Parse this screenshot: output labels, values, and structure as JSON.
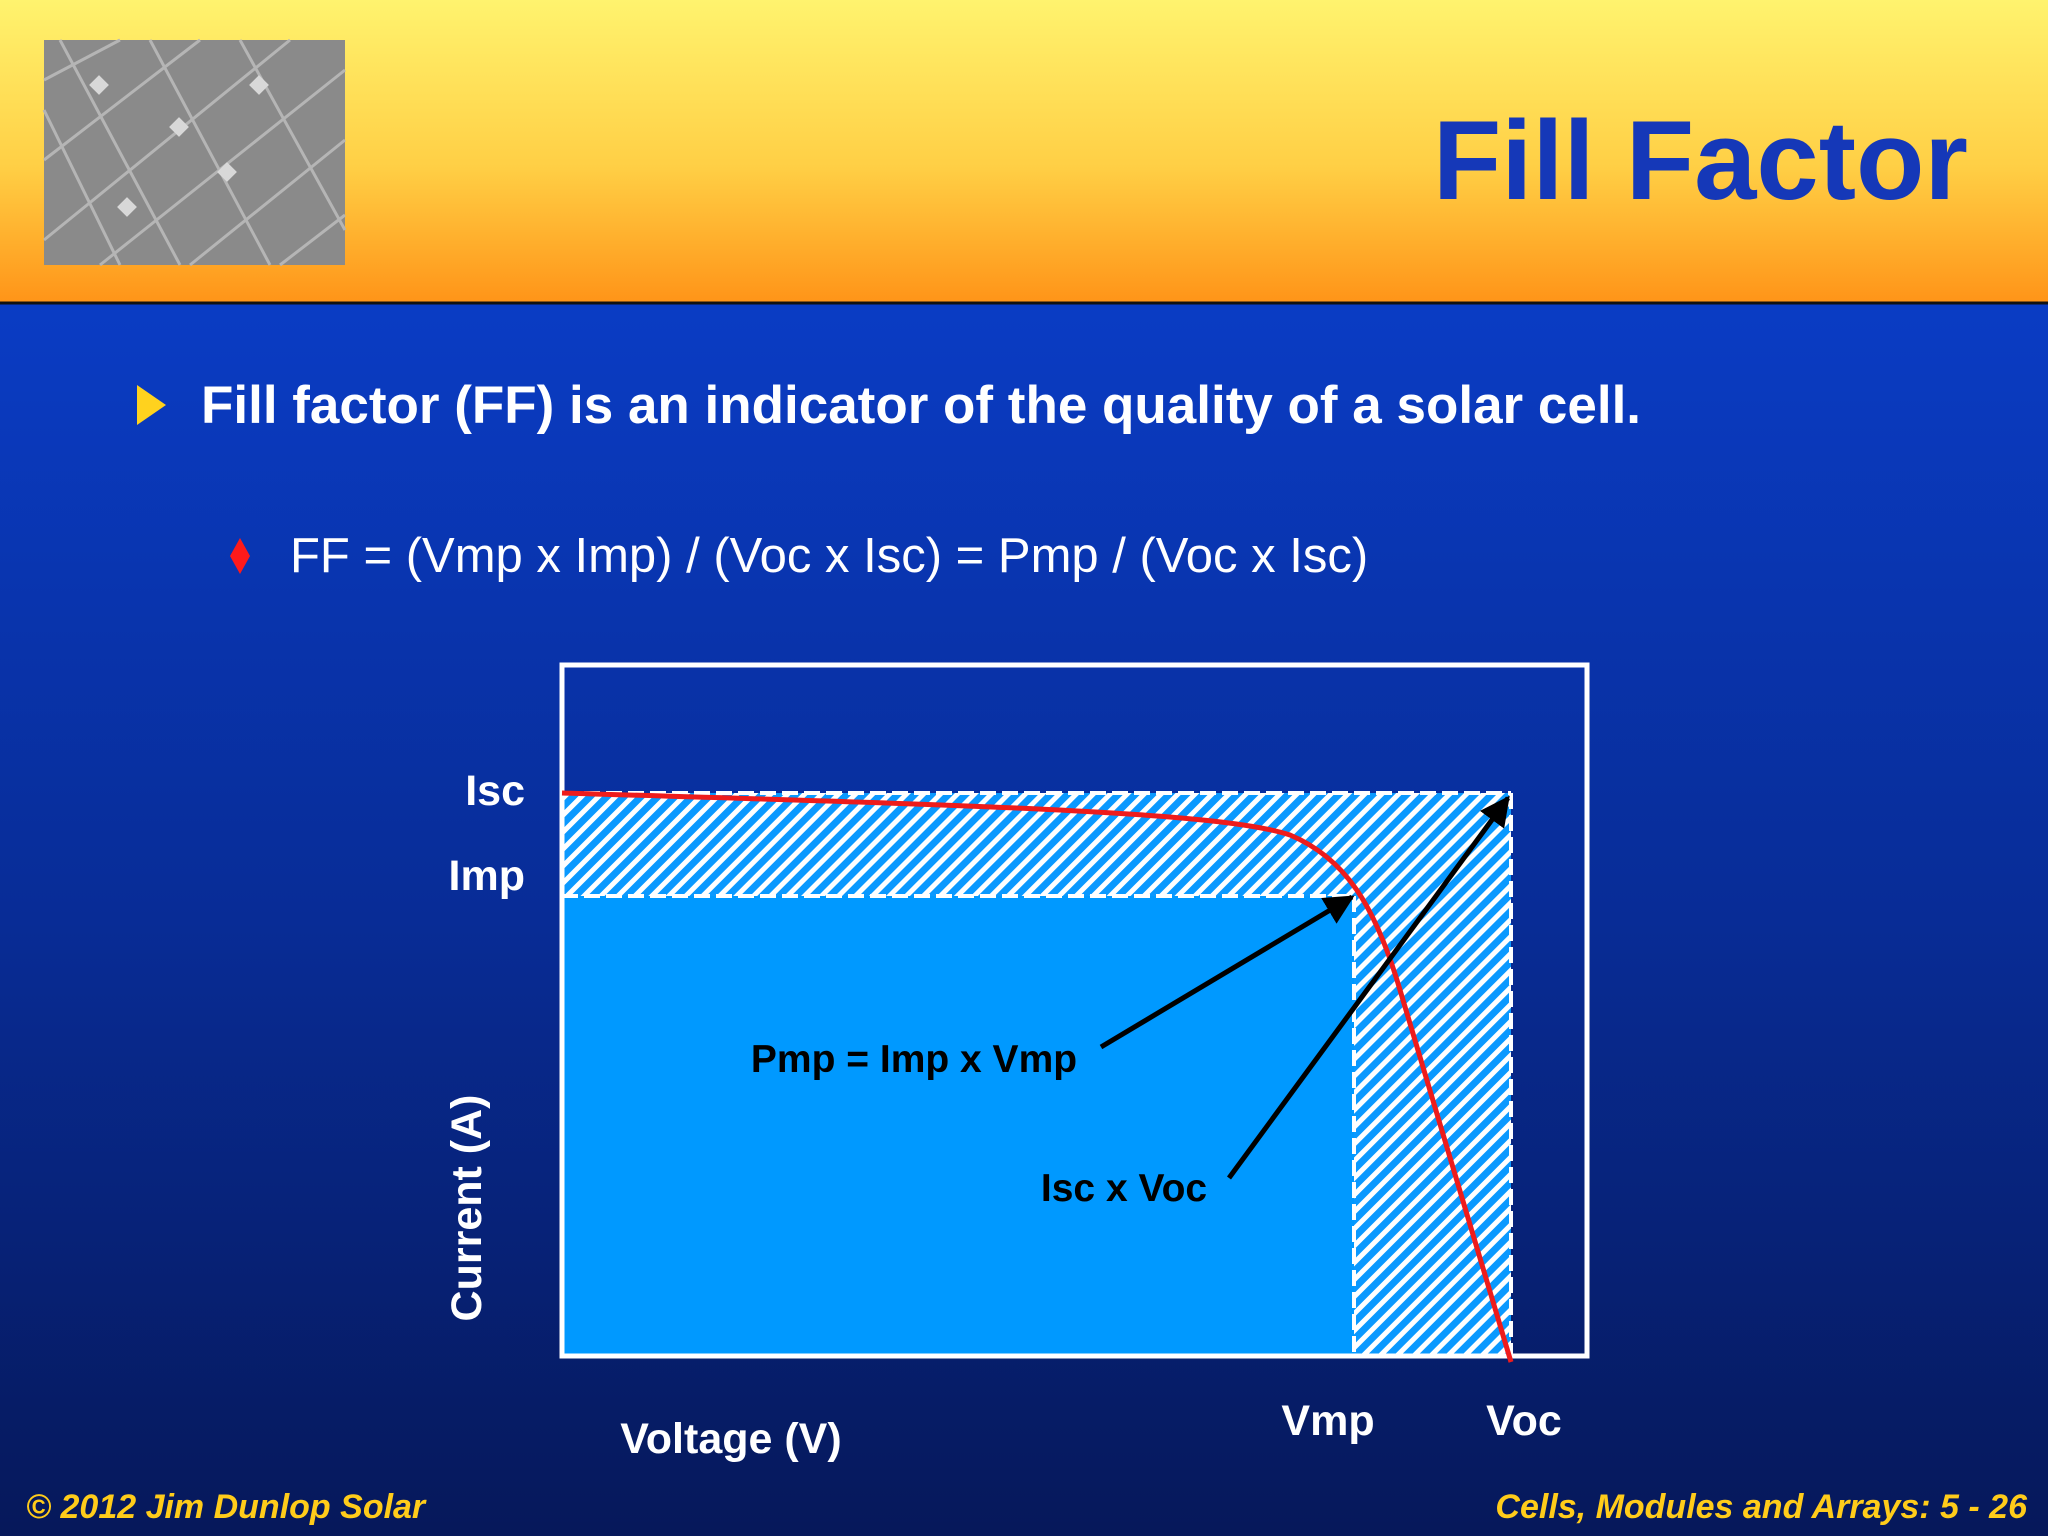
{
  "header": {
    "title": "Fill Factor"
  },
  "bullet": {
    "text": "Fill factor (FF) is an indicator of the quality of a solar cell.",
    "sub": "FF = (Vmp x Imp) / (Voc x Isc) = Pmp / (Voc x Isc)"
  },
  "diagram": {
    "isc": "Isc",
    "imp": "Imp",
    "y_label": "Current (A)",
    "x_label": "Voltage (V)",
    "vmp": "Vmp",
    "voc": "Voc",
    "pmp_label": "Pmp = Imp x Vmp",
    "isc_voc_label": "Isc x Voc"
  },
  "footer": {
    "left": "© 2012 Jim Dunlop Solar",
    "right": "Cells, Modules and Arrays: 5 - 26"
  }
}
